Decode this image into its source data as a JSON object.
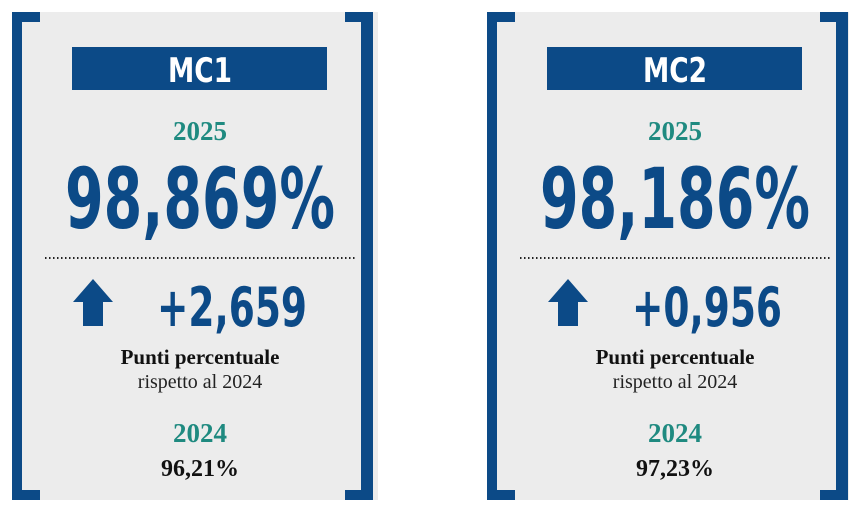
{
  "cards": [
    {
      "title": "MC1",
      "year_current": "2025",
      "value_current": "98,869%",
      "change": "+2,659",
      "change_label": "Punti percentuale",
      "change_sub": "rispetto al 2024",
      "year_previous": "2024",
      "value_previous": "96,21%"
    },
    {
      "title": "MC2",
      "year_current": "2025",
      "value_current": "98,186%",
      "change": "+0,956",
      "change_label": "Punti percentuale",
      "change_sub": "rispetto al 2024",
      "year_previous": "2024",
      "value_previous": "97,23%"
    }
  ]
}
